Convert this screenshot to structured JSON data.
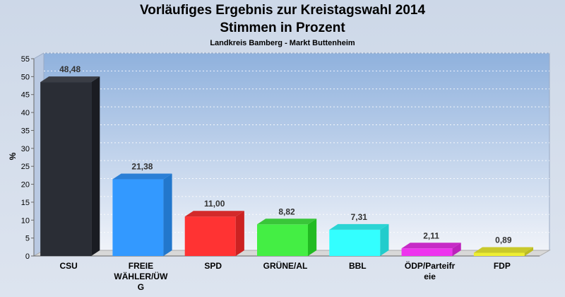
{
  "header": {
    "title_line1": "Vorläufiges Ergebnis zur Kreistagswahl 2014",
    "title_line2": "Stimmen in Prozent",
    "subtitle": "Landkreis Bamberg - Markt Buttenheim"
  },
  "chart_data": {
    "type": "bar",
    "title": "Vorläufiges Ergebnis zur Kreistagswahl 2014 Stimmen in Prozent",
    "subtitle": "Landkreis Bamberg - Markt Buttenheim",
    "xlabel": "",
    "ylabel": "%",
    "ylim": [
      0,
      55
    ],
    "yticks": [
      0,
      5,
      10,
      15,
      20,
      25,
      30,
      35,
      40,
      45,
      50,
      55
    ],
    "grid": true,
    "categories": [
      [
        "CSU"
      ],
      [
        "FREIE",
        "WÄHLER/ÜW",
        "G"
      ],
      [
        "SPD"
      ],
      [
        "GRÜNE/AL"
      ],
      [
        "BBL"
      ],
      [
        "ÖDP/Parteifr",
        "eie"
      ],
      [
        "FDP"
      ]
    ],
    "values": [
      48.48,
      21.38,
      11.0,
      8.82,
      7.31,
      2.11,
      0.89
    ],
    "value_labels": [
      "48,48",
      "21,38",
      "11,00",
      "8,82",
      "7,31",
      "2,11",
      "0,89"
    ],
    "colors": [
      "#2a2d35",
      "#3399ff",
      "#ff3333",
      "#44ee44",
      "#33ffff",
      "#ee33ee",
      "#eeee33"
    ],
    "side_colors": [
      "#1a1c22",
      "#2277cc",
      "#cc2222",
      "#22bb22",
      "#22cccc",
      "#bb22bb",
      "#bbbb22"
    ],
    "top_colors": [
      "#3a3d45",
      "#2b7fd6",
      "#d32a2a",
      "#39c639",
      "#2bd4d4",
      "#c62bc6",
      "#c9c92b"
    ]
  }
}
